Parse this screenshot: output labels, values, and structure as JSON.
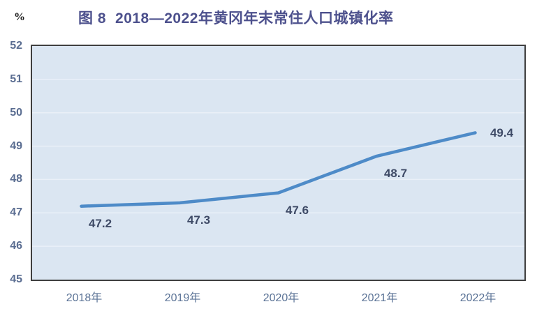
{
  "axis_unit": "%",
  "header": {
    "figure_label": "图 8",
    "title": "2018—2022年黄冈年末常住人口城镇化率"
  },
  "chart_data": {
    "type": "line",
    "title": "图 8 2018—2022年黄冈年末常住人口城镇化率",
    "categories": [
      "2018年",
      "2019年",
      "2020年",
      "2021年",
      "2022年"
    ],
    "values": [
      47.2,
      47.3,
      47.6,
      48.7,
      49.4
    ],
    "data_labels": [
      "47.2",
      "47.3",
      "47.6",
      "48.7",
      "49.4"
    ],
    "label_positions": [
      "below",
      "below",
      "below",
      "below",
      "right"
    ],
    "xlabel": "",
    "ylabel": "%",
    "ylim": [
      45,
      52
    ],
    "y_ticks": [
      45,
      46,
      47,
      48,
      49,
      50,
      51,
      52
    ],
    "grid": true,
    "legend_position": "none",
    "colors": {
      "line": "#4e8bc8",
      "plot_background": "#dbe6f2",
      "gridline": "#eaf0f8",
      "plot_border": "#3f3f3f",
      "title": "#4d518d",
      "y_tick": "#5a6d91",
      "x_tick": "#5b7396",
      "data_label": "#3e4a66"
    }
  }
}
